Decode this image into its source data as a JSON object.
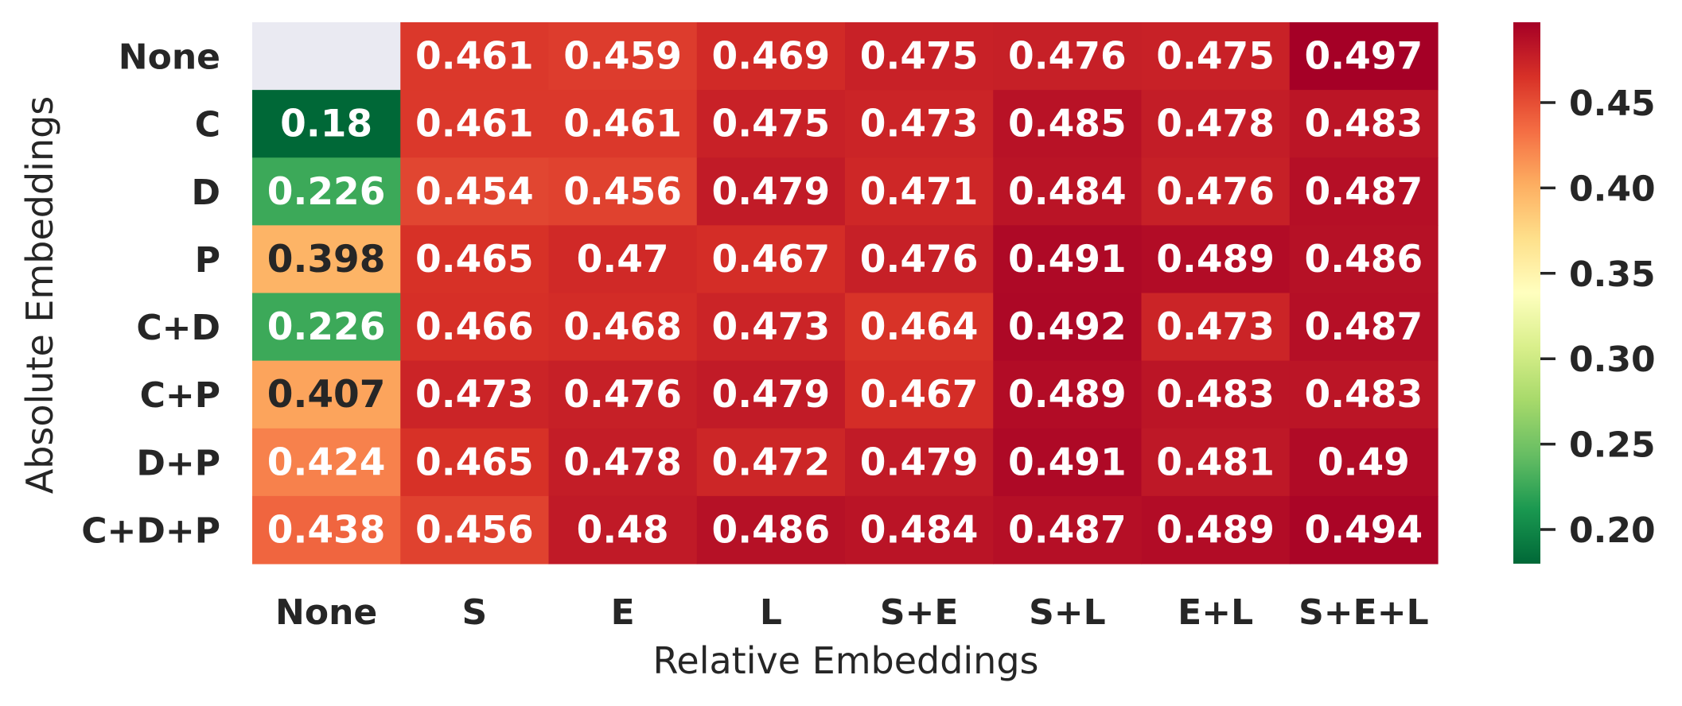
{
  "chart_data": {
    "type": "heatmap",
    "title": "",
    "xlabel": "Relative Embeddings",
    "ylabel": "Absolute Embeddings",
    "x_categories": [
      "None",
      "S",
      "E",
      "L",
      "S+E",
      "S+L",
      "E+L",
      "S+E+L"
    ],
    "y_categories": [
      "None",
      "C",
      "D",
      "P",
      "C+D",
      "C+P",
      "D+P",
      "C+D+P"
    ],
    "values": [
      [
        null,
        0.461,
        0.459,
        0.469,
        0.475,
        0.476,
        0.475,
        0.497
      ],
      [
        0.18,
        0.461,
        0.461,
        0.475,
        0.473,
        0.485,
        0.478,
        0.483
      ],
      [
        0.226,
        0.454,
        0.456,
        0.479,
        0.471,
        0.484,
        0.476,
        0.487
      ],
      [
        0.398,
        0.465,
        0.47,
        0.467,
        0.476,
        0.491,
        0.489,
        0.486
      ],
      [
        0.226,
        0.466,
        0.468,
        0.473,
        0.464,
        0.492,
        0.473,
        0.487
      ],
      [
        0.407,
        0.473,
        0.476,
        0.479,
        0.467,
        0.489,
        0.483,
        0.483
      ],
      [
        0.424,
        0.465,
        0.478,
        0.472,
        0.479,
        0.491,
        0.481,
        0.49
      ],
      [
        0.438,
        0.456,
        0.48,
        0.486,
        0.484,
        0.487,
        0.489,
        0.494
      ]
    ],
    "labels": [
      [
        "",
        "0.461",
        "0.459",
        "0.469",
        "0.475",
        "0.476",
        "0.475",
        "0.497"
      ],
      [
        "0.18",
        "0.461",
        "0.461",
        "0.475",
        "0.473",
        "0.485",
        "0.478",
        "0.483"
      ],
      [
        "0.226",
        "0.454",
        "0.456",
        "0.479",
        "0.471",
        "0.484",
        "0.476",
        "0.487"
      ],
      [
        "0.398",
        "0.465",
        "0.47",
        "0.467",
        "0.476",
        "0.491",
        "0.489",
        "0.486"
      ],
      [
        "0.226",
        "0.466",
        "0.468",
        "0.473",
        "0.464",
        "0.492",
        "0.473",
        "0.487"
      ],
      [
        "0.407",
        "0.473",
        "0.476",
        "0.479",
        "0.467",
        "0.489",
        "0.483",
        "0.483"
      ],
      [
        "0.424",
        "0.465",
        "0.478",
        "0.472",
        "0.479",
        "0.491",
        "0.481",
        "0.49"
      ],
      [
        "0.438",
        "0.456",
        "0.48",
        "0.486",
        "0.484",
        "0.487",
        "0.489",
        "0.494"
      ]
    ],
    "colormap": "RdYlGn_r",
    "color_range": [
      0.18,
      0.497
    ],
    "missing_color": "#eaeaf2",
    "colorbar_ticks": [
      0.2,
      0.25,
      0.3,
      0.35,
      0.4,
      0.45
    ],
    "colorbar_tick_labels": [
      "0.20",
      "0.25",
      "0.30",
      "0.35",
      "0.40",
      "0.45"
    ],
    "legend": "colorbar-right",
    "grid": false
  }
}
